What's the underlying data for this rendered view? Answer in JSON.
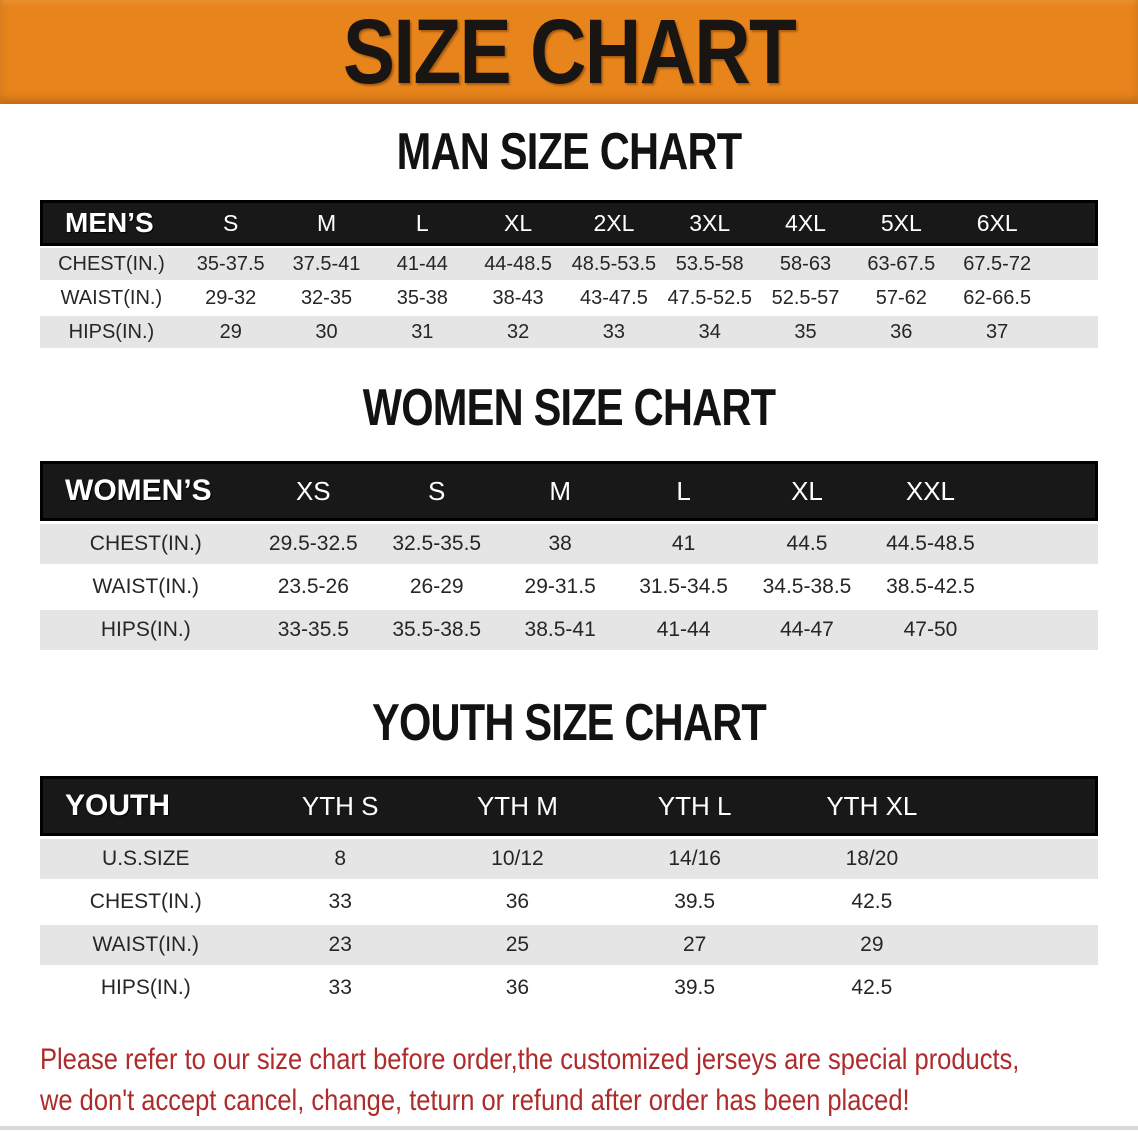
{
  "banner": {
    "title": "SIZE CHART"
  },
  "colors": {
    "banner-bg": "#E8841C",
    "table-header-bg": "#181818",
    "row-stripe": "#E5E5E5",
    "disclaimer-text": "#AE2B2B"
  },
  "sections": [
    {
      "heading": "MAN SIZE CHART",
      "table": {
        "header_label": "MEN’S",
        "columns": [
          "S",
          "M",
          "L",
          "XL",
          "2XL",
          "3XL",
          "4XL",
          "5XL",
          "6XL"
        ],
        "rows": [
          {
            "label": "CHEST(IN.)",
            "values": [
              "35-37.5",
              "37.5-41",
              "41-44",
              "44-48.5",
              "48.5-53.5",
              "53.5-58",
              "58-63",
              "63-67.5",
              "67.5-72"
            ]
          },
          {
            "label": "WAIST(IN.)",
            "values": [
              "29-32",
              "32-35",
              "35-38",
              "38-43",
              "43-47.5",
              "47.5-52.5",
              "52.5-57",
              "57-62",
              "62-66.5"
            ]
          },
          {
            "label": "HIPS(IN.)",
            "values": [
              "29",
              "30",
              "31",
              "32",
              "33",
              "34",
              "35",
              "36",
              "37"
            ]
          }
        ]
      }
    },
    {
      "heading": "WOMEN SIZE CHART",
      "table": {
        "header_label": "WOMEN’S",
        "columns": [
          "XS",
          "S",
          "M",
          "L",
          "XL",
          "XXL"
        ],
        "rows": [
          {
            "label": "CHEST(IN.)",
            "values": [
              "29.5-32.5",
              "32.5-35.5",
              "38",
              "41",
              "44.5",
              "44.5-48.5"
            ]
          },
          {
            "label": "WAIST(IN.)",
            "values": [
              "23.5-26",
              "26-29",
              "29-31.5",
              "31.5-34.5",
              "34.5-38.5",
              "38.5-42.5"
            ]
          },
          {
            "label": "HIPS(IN.)",
            "values": [
              "33-35.5",
              "35.5-38.5",
              "38.5-41",
              "41-44",
              "44-47",
              "47-50"
            ]
          }
        ]
      }
    },
    {
      "heading": "YOUTH SIZE CHART",
      "table": {
        "header_label": "YOUTH",
        "columns": [
          "YTH S",
          "YTH M",
          "YTH L",
          "YTH XL"
        ],
        "rows": [
          {
            "label": "U.S.SIZE",
            "values": [
              "8",
              "10/12",
              "14/16",
              "18/20"
            ]
          },
          {
            "label": "CHEST(IN.)",
            "values": [
              "33",
              "36",
              "39.5",
              "42.5"
            ]
          },
          {
            "label": "WAIST(IN.)",
            "values": [
              "23",
              "25",
              "27",
              "29"
            ]
          },
          {
            "label": "HIPS(IN.)",
            "values": [
              "33",
              "36",
              "39.5",
              "42.5"
            ]
          }
        ]
      }
    }
  ],
  "disclaimer": {
    "line1": "Please refer to our size chart before order,the customized jerseys are special products,",
    "line2": "we don't accept cancel, change, teturn or refund after order has been placed!"
  }
}
